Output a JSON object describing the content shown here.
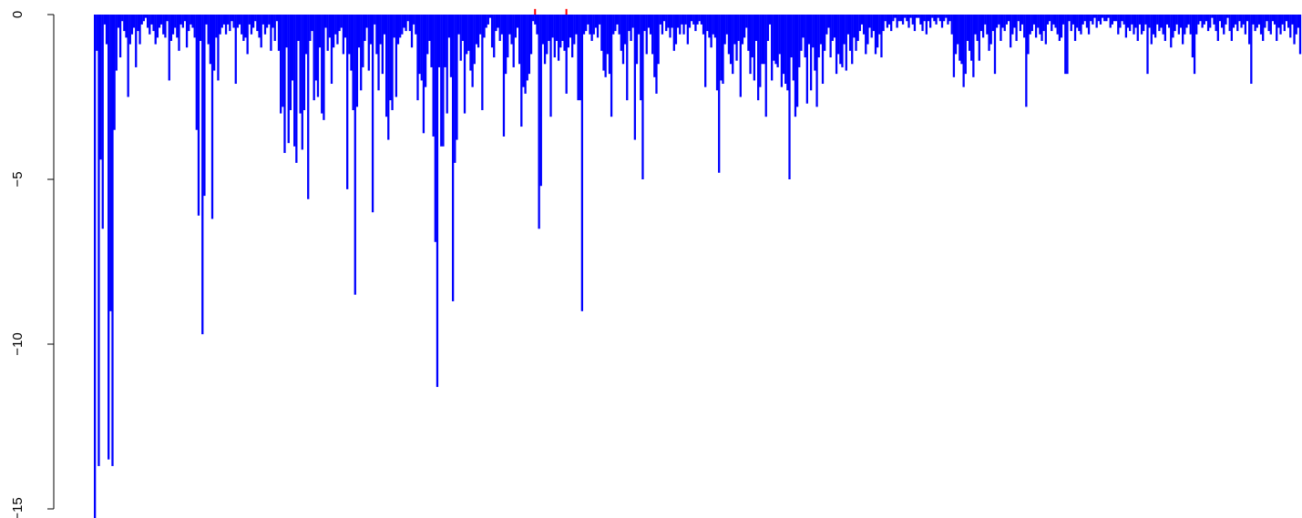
{
  "chart_data": {
    "type": "bar",
    "title": "",
    "xlabel": "",
    "ylabel": "",
    "ylim": [
      -15.3,
      0.2
    ],
    "yticks": [
      0,
      -5,
      -10,
      -15
    ],
    "ytick_labels": [
      "0",
      "−5",
      "−10",
      "−15"
    ],
    "x_axis_drawn": false,
    "grid": false,
    "legend": "none",
    "bar_color": "#0000ff",
    "highlight_color": "#ff0000",
    "n_bars": 610,
    "series": [
      {
        "values": [
          -15.3,
          -1.1,
          -13.7,
          -4.4,
          -6.5,
          -0.3,
          -0.9,
          -13.5,
          -9.0,
          -13.7,
          -3.5,
          -1.7,
          -0.4,
          -1.3,
          -0.2,
          -0.5,
          -0.7,
          -2.5,
          -0.9,
          -0.6,
          -0.4,
          -1.6,
          -0.5,
          -0.9,
          -0.3,
          -0.2,
          -0.1,
          -0.4,
          -0.6,
          -0.3,
          -0.5,
          -0.9,
          -0.7,
          -0.4,
          -0.3,
          -0.6,
          -0.7,
          -0.2,
          -2.0,
          -0.8,
          -0.6,
          -0.4,
          -0.7,
          -1.1,
          -0.3,
          -0.4,
          -0.2,
          -1.0,
          -0.5,
          -0.3,
          -0.4,
          -0.7,
          -3.5,
          -6.1,
          -0.8,
          -9.7,
          -5.5,
          -0.3,
          -0.9,
          -1.5,
          -6.2,
          -1.7,
          -0.7,
          -2.0,
          -0.6,
          -0.4,
          -0.3,
          -0.6,
          -0.3,
          -0.5,
          -0.2,
          -0.4,
          -2.1,
          -0.4,
          -0.3,
          -0.6,
          -0.8,
          -0.7,
          -1.2,
          -0.3,
          -0.6,
          -0.4,
          -0.2,
          -0.5,
          -0.7,
          -1.0,
          -0.3,
          -0.6,
          -0.4,
          -0.3,
          -1.1,
          -0.4,
          -0.8,
          -0.2,
          -1.1,
          -3.0,
          -2.8,
          -4.2,
          -1.0,
          -3.9,
          -2.9,
          -2.0,
          -4.0,
          -4.5,
          -0.8,
          -3.0,
          -4.1,
          -2.9,
          -1.2,
          -5.6,
          -0.8,
          -0.5,
          -2.6,
          -2.0,
          -2.5,
          -1.0,
          -3.0,
          -3.2,
          -0.4,
          -1.1,
          -0.7,
          -2.1,
          -1.0,
          -0.6,
          -0.9,
          -0.5,
          -0.4,
          -1.2,
          -0.7,
          -5.3,
          -1.2,
          -1.7,
          -2.9,
          -8.5,
          -2.8,
          -1.0,
          -2.3,
          -1.6,
          -0.8,
          -0.4,
          -1.7,
          -0.9,
          -6.0,
          -0.3,
          -1.2,
          -2.3,
          -0.9,
          -1.8,
          -0.6,
          -3.1,
          -3.8,
          -2.6,
          -2.9,
          -0.7,
          -2.5,
          -0.9,
          -0.7,
          -0.6,
          -0.4,
          -0.5,
          -0.2,
          -0.5,
          -1.0,
          -0.3,
          -0.6,
          -2.6,
          -1.8,
          -2.0,
          -3.6,
          -2.2,
          -1.2,
          -0.8,
          -1.6,
          -3.7,
          -6.9,
          -11.3,
          -1.6,
          -4.0,
          -4.0,
          -1.6,
          -3.0,
          -0.7,
          -1.9,
          -8.7,
          -4.5,
          -3.8,
          -0.6,
          -1.4,
          -0.8,
          -3.0,
          -1.2,
          -1.1,
          -1.7,
          -2.2,
          -1.5,
          -0.9,
          -1.0,
          -0.6,
          -2.9,
          -0.7,
          -0.4,
          -0.3,
          -0.1,
          -1.0,
          -1.3,
          -0.5,
          -0.4,
          -0.8,
          -0.6,
          -3.7,
          -1.8,
          -1.3,
          -0.6,
          -0.9,
          -1.6,
          -0.7,
          -0.4,
          -1.5,
          -3.4,
          -2.2,
          -2.4,
          -2.0,
          -1.8,
          -1.2,
          -0.2,
          -0.3,
          -0.6,
          -6.5,
          -5.2,
          -0.9,
          -1.5,
          -1.2,
          -0.8,
          -3.1,
          -0.7,
          -1.3,
          -0.8,
          -1.4,
          -1.0,
          -0.8,
          -1.1,
          -2.4,
          -1.0,
          -0.7,
          -1.3,
          -0.9,
          -0.6,
          -2.6,
          -2.6,
          -9.0,
          -0.6,
          -0.5,
          -0.3,
          -0.6,
          -0.8,
          -0.6,
          -0.4,
          -0.7,
          -0.3,
          -1.1,
          -1.7,
          -1.9,
          -1.2,
          -1.8,
          -3.1,
          -0.6,
          -0.5,
          -0.3,
          -0.6,
          -1.1,
          -1.5,
          -0.9,
          -2.6,
          -0.5,
          -0.8,
          -0.4,
          -3.8,
          -1.5,
          -0.6,
          -2.6,
          -5.0,
          -0.5,
          -1.2,
          -0.4,
          -0.6,
          -1.2,
          -1.9,
          -2.4,
          -1.5,
          -0.3,
          -0.6,
          -0.2,
          -0.5,
          -0.4,
          -0.7,
          -0.4,
          -1.1,
          -0.9,
          -0.4,
          -0.6,
          -0.3,
          -0.6,
          -0.3,
          -0.9,
          -0.4,
          -0.2,
          -0.3,
          -0.5,
          -0.3,
          -0.2,
          -0.3,
          -0.6,
          -2.2,
          -0.5,
          -0.7,
          -1.0,
          -0.6,
          -0.7,
          -2.3,
          -4.8,
          -2.0,
          -2.1,
          -0.9,
          -0.6,
          -1.2,
          -1.5,
          -1.8,
          -0.9,
          -1.4,
          -0.8,
          -2.5,
          -0.9,
          -0.7,
          -0.4,
          -1.1,
          -1.8,
          -1.3,
          -2.0,
          -0.8,
          -2.6,
          -2.2,
          -1.5,
          -1.5,
          -3.1,
          -0.8,
          -0.3,
          -2.0,
          -1.4,
          -1.5,
          -1.6,
          -1.2,
          -2.2,
          -1.8,
          -2.1,
          -2.3,
          -5.0,
          -1.3,
          -2.0,
          -3.1,
          -2.8,
          -1.6,
          -1.1,
          -0.7,
          -1.3,
          -2.7,
          -0.9,
          -2.3,
          -1.0,
          -1.7,
          -2.8,
          -1.3,
          -0.9,
          -2.1,
          -1.1,
          -0.6,
          -0.4,
          -1.3,
          -0.8,
          -0.7,
          -1.8,
          -1.2,
          -1.5,
          -1.6,
          -0.9,
          -1.7,
          -0.6,
          -1.1,
          -1.5,
          -0.7,
          -1.1,
          -0.8,
          -0.5,
          -0.3,
          -0.6,
          -1.2,
          -0.9,
          -0.4,
          -0.7,
          -0.5,
          -1.2,
          -1.0,
          -0.6,
          -1.3,
          -0.5,
          -0.2,
          -0.4,
          -0.3,
          -0.5,
          -0.2,
          -0.1,
          -0.4,
          -0.2,
          -0.2,
          -0.3,
          -0.1,
          -0.2,
          -0.4,
          -0.1,
          -0.3,
          -0.5,
          -0.1,
          -0.1,
          -0.3,
          -0.5,
          -0.2,
          -0.6,
          -0.2,
          -0.4,
          -0.1,
          -0.2,
          -0.3,
          -0.1,
          -0.2,
          -0.4,
          -0.2,
          -0.1,
          -0.3,
          -0.2,
          -0.6,
          -1.9,
          -1.2,
          -0.9,
          -1.4,
          -1.5,
          -2.2,
          -1.8,
          -0.8,
          -1.1,
          -1.4,
          -1.9,
          -0.6,
          -0.8,
          -1.4,
          -0.5,
          -0.7,
          -0.3,
          -0.6,
          -1.1,
          -0.9,
          -0.5,
          -1.8,
          -0.4,
          -0.3,
          -0.8,
          -0.4,
          -0.5,
          -0.3,
          -0.2,
          -1.0,
          -0.6,
          -0.4,
          -0.8,
          -0.2,
          -0.5,
          -0.3,
          -0.7,
          -2.8,
          -1.2,
          -0.6,
          -0.5,
          -0.3,
          -0.7,
          -0.4,
          -0.6,
          -0.8,
          -0.5,
          -0.9,
          -0.3,
          -0.2,
          -0.5,
          -0.3,
          -0.4,
          -0.6,
          -0.8,
          -0.7,
          -0.3,
          -1.8,
          -1.8,
          -0.2,
          -0.5,
          -0.3,
          -0.8,
          -0.4,
          -0.5,
          -0.6,
          -0.3,
          -0.2,
          -0.4,
          -0.6,
          -0.2,
          -0.3,
          -0.1,
          -0.4,
          -0.2,
          -0.3,
          -0.1,
          -0.2,
          -0.2,
          -0.1,
          -0.4,
          -0.3,
          -0.2,
          -0.2,
          -0.6,
          -0.4,
          -0.2,
          -0.3,
          -0.7,
          -0.4,
          -0.5,
          -0.3,
          -0.6,
          -0.4,
          -0.8,
          -0.3,
          -0.6,
          -0.5,
          -0.3,
          -1.8,
          -0.4,
          -0.9,
          -0.6,
          -0.7,
          -0.3,
          -0.5,
          -0.4,
          -0.6,
          -0.8,
          -0.3,
          -0.4,
          -1.0,
          -0.7,
          -0.5,
          -0.3,
          -0.6,
          -0.4,
          -0.9,
          -0.6,
          -0.4,
          -0.3,
          -0.6,
          -1.3,
          -1.8,
          -0.6,
          -0.3,
          -0.2,
          -0.4,
          -0.3,
          -0.2,
          -0.5,
          -0.4,
          -0.1,
          -0.3,
          -0.5,
          -0.8,
          -0.2,
          -0.4,
          -0.6,
          -0.3,
          -0.1,
          -0.5,
          -0.8,
          -0.4,
          -0.3,
          -0.5,
          -0.2,
          -0.4,
          -0.3,
          -0.6,
          -0.2,
          -0.9,
          -2.1,
          -0.3,
          -0.5,
          -0.4,
          -0.3,
          -0.6,
          -0.8,
          -0.4,
          -0.2,
          -0.5,
          -0.6,
          -0.2,
          -0.3,
          -0.8,
          -0.4,
          -0.6,
          -0.3,
          -0.5,
          -0.2,
          -0.4,
          -0.7,
          -0.3,
          -0.9,
          -0.6,
          -0.4,
          -1.2
        ]
      }
    ],
    "highlight_marks": [
      {
        "bar_index": 225,
        "value": 0.17
      },
      {
        "bar_index": 241,
        "value": 0.17
      }
    ]
  }
}
